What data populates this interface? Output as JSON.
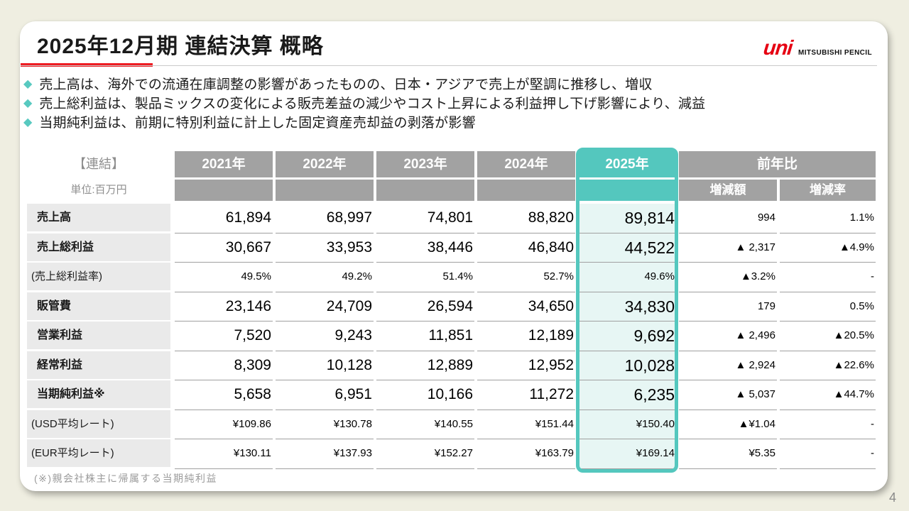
{
  "page": {
    "number": "4"
  },
  "header": {
    "title": "2025年12月期 連結決算 概略",
    "logo": {
      "brand": "uni",
      "company": "MITSUBISHI PENCIL",
      "brand_color": "#e60012"
    }
  },
  "bullets": [
    "売上高は、海外での流通在庫調整の影響があったものの、日本・アジアで売上が堅調に推移し、増収",
    "売上総利益は、製品ミックスの変化による販売差益の減少やコスト上昇による利益押し下げ影響により、減益",
    "当期純利益は、前期に特別利益に計上した固定資産売却益の剥落が影響"
  ],
  "table": {
    "corner_label": "【連結】",
    "unit_label": "単位:百万円",
    "year_headers": [
      "2021年",
      "2022年",
      "2023年",
      "2024年",
      "2025年"
    ],
    "yoy_header": "前年比",
    "yoy_subheaders": [
      "増減額",
      "増減率"
    ],
    "highlight_column": "2025年",
    "highlight_color": "#54c7be",
    "rows": [
      {
        "label": "売上高",
        "style": "main",
        "values": [
          "61,894",
          "68,997",
          "74,801",
          "88,820",
          "89,814",
          "994",
          "1.1%"
        ]
      },
      {
        "label": "売上総利益",
        "style": "main",
        "values": [
          "30,667",
          "33,953",
          "38,446",
          "46,840",
          "44,522",
          "▲ 2,317",
          "▲4.9%"
        ]
      },
      {
        "label": "(売上総利益率)",
        "style": "sub",
        "values": [
          "49.5%",
          "49.2%",
          "51.4%",
          "52.7%",
          "49.6%",
          "▲3.2%",
          "-"
        ]
      },
      {
        "label": "販管費",
        "style": "main",
        "values": [
          "23,146",
          "24,709",
          "26,594",
          "34,650",
          "34,830",
          "179",
          "0.5%"
        ]
      },
      {
        "label": "営業利益",
        "style": "main",
        "values": [
          "7,520",
          "9,243",
          "11,851",
          "12,189",
          "9,692",
          "▲ 2,496",
          "▲20.5%"
        ]
      },
      {
        "label": "経常利益",
        "style": "main",
        "values": [
          "8,309",
          "10,128",
          "12,889",
          "12,952",
          "10,028",
          "▲ 2,924",
          "▲22.6%"
        ]
      },
      {
        "label": "当期純利益※",
        "style": "main",
        "values": [
          "5,658",
          "6,951",
          "10,166",
          "11,272",
          "6,235",
          "▲ 5,037",
          "▲44.7%"
        ]
      },
      {
        "label": "(USD平均レート)",
        "style": "sub",
        "values": [
          "¥109.86",
          "¥130.78",
          "¥140.55",
          "¥151.44",
          "¥150.40",
          "▲¥1.04",
          "-"
        ]
      },
      {
        "label": "(EUR平均レート)",
        "style": "sub",
        "values": [
          "¥130.11",
          "¥137.93",
          "¥152.27",
          "¥163.79",
          "¥169.14",
          "¥5.35",
          "-"
        ]
      }
    ],
    "footnote": "(※)親会社株主に帰属する当期純利益"
  }
}
